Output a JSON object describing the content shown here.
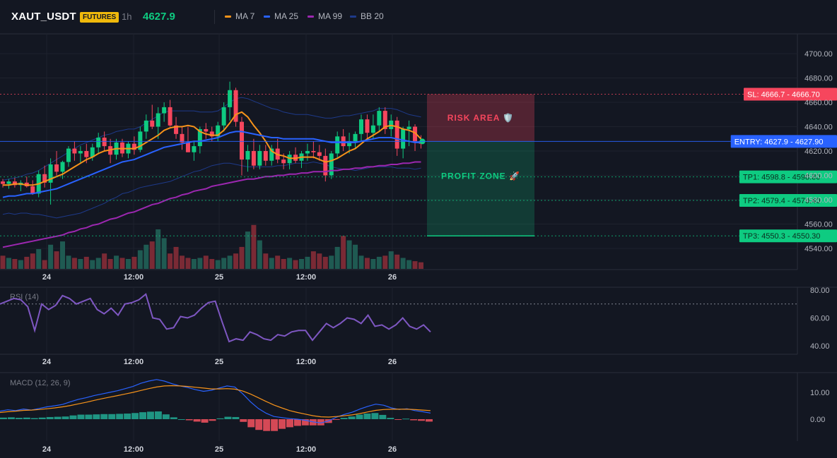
{
  "header": {
    "symbol": "XAUT_USDT",
    "badge": "FUTURES",
    "timeframe": "1h",
    "price": "4627.9",
    "legend": [
      {
        "label": "MA 7",
        "color": "#f7931a"
      },
      {
        "label": "MA 25",
        "color": "#2962ff"
      },
      {
        "label": "MA 99",
        "color": "#9c27b0"
      },
      {
        "label": "BB 20",
        "color": "#1e3a8a"
      }
    ]
  },
  "colors": {
    "up": "#0ecb81",
    "down": "#f6465d",
    "bg": "#131722",
    "grid": "#1e222d"
  },
  "chart_data": [
    {
      "type": "candlestick",
      "title": "XAUT_USDT",
      "ylim": [
        4530,
        4710
      ],
      "y_ticks": [
        "4700.00",
        "4680.00",
        "4660.00",
        "4640.00",
        "4620.00",
        "4600.00",
        "4580.00",
        "4560.00",
        "4540.00"
      ],
      "x_ticks": [
        "24",
        "12:00",
        "25",
        "12:00",
        "26"
      ],
      "ohlc": [
        [
          4595,
          4597,
          4590,
          4593
        ],
        [
          4593,
          4597,
          4589,
          4595
        ],
        [
          4595,
          4598,
          4590,
          4592
        ],
        [
          4592,
          4596,
          4587,
          4594
        ],
        [
          4594,
          4599,
          4590,
          4591
        ],
        [
          4591,
          4596,
          4584,
          4585
        ],
        [
          4585,
          4604,
          4582,
          4601
        ],
        [
          4601,
          4608,
          4590,
          4594
        ],
        [
          4594,
          4614,
          4576,
          4609
        ],
        [
          4609,
          4620,
          4600,
          4603
        ],
        [
          4603,
          4612,
          4597,
          4611
        ],
        [
          4611,
          4624,
          4607,
          4622
        ],
        [
          4622,
          4628,
          4612,
          4618
        ],
        [
          4618,
          4624,
          4610,
          4620
        ],
        [
          4620,
          4626,
          4610,
          4615
        ],
        [
          4615,
          4626,
          4612,
          4623
        ],
        [
          4623,
          4635,
          4618,
          4631
        ],
        [
          4631,
          4636,
          4620,
          4624
        ],
        [
          4624,
          4630,
          4610,
          4617
        ],
        [
          4617,
          4630,
          4613,
          4627
        ],
        [
          4627,
          4630,
          4615,
          4618
        ],
        [
          4618,
          4628,
          4614,
          4626
        ],
        [
          4626,
          4632,
          4617,
          4621
        ],
        [
          4621,
          4640,
          4619,
          4636
        ],
        [
          4636,
          4650,
          4630,
          4645
        ],
        [
          4645,
          4658,
          4638,
          4640
        ],
        [
          4640,
          4656,
          4630,
          4651
        ],
        [
          4651,
          4660,
          4644,
          4656
        ],
        [
          4656,
          4662,
          4640,
          4641
        ],
        [
          4641,
          4648,
          4630,
          4634
        ],
        [
          4634,
          4640,
          4621,
          4627
        ],
        [
          4627,
          4640,
          4619,
          4619
        ],
        [
          4619,
          4628,
          4612,
          4624
        ],
        [
          4624,
          4640,
          4618,
          4638
        ],
        [
          4638,
          4643,
          4630,
          4636
        ],
        [
          4636,
          4640,
          4628,
          4632
        ],
        [
          4632,
          4644,
          4628,
          4641
        ],
        [
          4641,
          4660,
          4636,
          4656
        ],
        [
          4656,
          4677,
          4645,
          4670
        ],
        [
          4670,
          4672,
          4640,
          4644
        ],
        [
          4644,
          4648,
          4600,
          4613
        ],
        [
          4613,
          4625,
          4603,
          4620
        ],
        [
          4620,
          4630,
          4605,
          4608
        ],
        [
          4608,
          4625,
          4605,
          4620
        ],
        [
          4620,
          4625,
          4608,
          4612
        ],
        [
          4612,
          4625,
          4608,
          4622
        ],
        [
          4622,
          4630,
          4610,
          4613
        ],
        [
          4613,
          4618,
          4605,
          4610
        ],
        [
          4610,
          4620,
          4605,
          4617
        ],
        [
          4617,
          4623,
          4610,
          4612
        ],
        [
          4612,
          4620,
          4606,
          4618
        ],
        [
          4618,
          4626,
          4612,
          4620
        ],
        [
          4620,
          4628,
          4614,
          4619
        ],
        [
          4619,
          4625,
          4612,
          4616
        ],
        [
          4616,
          4622,
          4595,
          4600
        ],
        [
          4600,
          4620,
          4597,
          4618
        ],
        [
          4618,
          4636,
          4614,
          4632
        ],
        [
          4632,
          4638,
          4620,
          4624
        ],
        [
          4624,
          4635,
          4618,
          4628
        ],
        [
          4628,
          4636,
          4622,
          4634
        ],
        [
          4634,
          4650,
          4628,
          4646
        ],
        [
          4646,
          4650,
          4630,
          4635
        ],
        [
          4635,
          4650,
          4630,
          4641
        ],
        [
          4641,
          4656,
          4636,
          4653
        ],
        [
          4653,
          4656,
          4634,
          4638
        ],
        [
          4638,
          4650,
          4632,
          4645
        ],
        [
          4645,
          4648,
          4616,
          4622
        ],
        [
          4622,
          4640,
          4614,
          4638
        ],
        [
          4638,
          4645,
          4624,
          4640
        ],
        [
          4640,
          4642,
          4620,
          4628
        ],
        [
          4628,
          4633,
          4622,
          4626
        ]
      ],
      "series": [
        {
          "name": "MA 7",
          "color": "#f7931a",
          "values": [
            4592,
            4592,
            4593,
            4593,
            4592,
            4592,
            4593,
            4595,
            4597,
            4599,
            4601,
            4604,
            4607,
            4610,
            4613,
            4615,
            4618,
            4620,
            4621,
            4622,
            4622,
            4622,
            4622,
            4624,
            4627,
            4630,
            4633,
            4637,
            4639,
            4640,
            4640,
            4641,
            4640,
            4636,
            4634,
            4633,
            4633,
            4637,
            4643,
            4650,
            4652,
            4648,
            4641,
            4635,
            4628,
            4620,
            4617,
            4616,
            4614,
            4614,
            4615,
            4615,
            4615,
            4613,
            4611,
            4612,
            4614,
            4617,
            4620,
            4622,
            4626,
            4630,
            4633,
            4636,
            4640,
            4641,
            4640,
            4638,
            4637,
            4635,
            4630
          ]
        },
        {
          "name": "MA 25",
          "color": "#2962ff",
          "values": [
            4582,
            4583,
            4583,
            4584,
            4585,
            4585,
            4586,
            4587,
            4588,
            4589,
            4591,
            4593,
            4595,
            4597,
            4599,
            4601,
            4603,
            4605,
            4607,
            4609,
            4611,
            4612,
            4613,
            4615,
            4617,
            4619,
            4621,
            4623,
            4624,
            4625,
            4626,
            4627,
            4628,
            4628,
            4629,
            4630,
            4631,
            4633,
            4635,
            4636,
            4636,
            4635,
            4634,
            4633,
            4632,
            4631,
            4631,
            4630,
            4630,
            4630,
            4630,
            4630,
            4630,
            4629,
            4628,
            4627,
            4627,
            4627,
            4627,
            4627,
            4628,
            4629,
            4630,
            4631,
            4631,
            4631,
            4630,
            4629,
            4628,
            4627,
            4627
          ]
        },
        {
          "name": "MA 99",
          "color": "#9c27b0",
          "values": [
            4541,
            4542,
            4543,
            4544,
            4545,
            4546,
            4547,
            4548,
            4549,
            4550,
            4551,
            4553,
            4554,
            4556,
            4557,
            4559,
            4560,
            4562,
            4564,
            4565,
            4567,
            4569,
            4570,
            4572,
            4574,
            4576,
            4577,
            4579,
            4581,
            4582,
            4584,
            4585,
            4587,
            4588,
            4589,
            4591,
            4592,
            4593,
            4594,
            4595,
            4596,
            4597,
            4597,
            4598,
            4599,
            4599,
            4600,
            4600,
            4601,
            4601,
            4602,
            4602,
            4603,
            4603,
            4603,
            4604,
            4604,
            4605,
            4605,
            4606,
            4606,
            4607,
            4607,
            4608,
            4608,
            4609,
            4609,
            4610,
            4610,
            4611,
            4611
          ]
        }
      ],
      "volume": [
        12,
        10,
        9,
        8,
        11,
        14,
        18,
        8,
        22,
        16,
        25,
        12,
        10,
        9,
        11,
        8,
        10,
        14,
        9,
        12,
        10,
        9,
        11,
        17,
        22,
        25,
        36,
        28,
        14,
        20,
        12,
        10,
        9,
        10,
        12,
        9,
        8,
        10,
        12,
        14,
        20,
        34,
        40,
        26,
        14,
        10,
        12,
        9,
        10,
        8,
        9,
        11,
        16,
        14,
        11,
        12,
        20,
        30,
        26,
        22,
        12,
        10,
        9,
        11,
        12,
        16,
        13,
        10,
        8,
        7,
        6
      ],
      "trade_levels": [
        {
          "label": "SL: 4666.7",
          "axis_label": "4666.70",
          "value": 4666.7,
          "color": "#f6465d"
        },
        {
          "label": "ENTRY: 4627.9",
          "axis_label": "4627.90",
          "value": 4627.9,
          "color": "#2962ff"
        },
        {
          "label": "TP1: 4598.8",
          "axis_label": "4598.80",
          "value": 4598.8,
          "color": "#0ecb81"
        },
        {
          "label": "TP2: 4579.4",
          "axis_label": "4579.40",
          "value": 4579.4,
          "color": "#0ecb81"
        },
        {
          "label": "TP3: 4550.3",
          "axis_label": "4550.30",
          "value": 4550.3,
          "color": "#0ecb81"
        }
      ],
      "annotations": {
        "risk": "RISK AREA 🛡️",
        "profit": "PROFIT ZONE 🚀"
      }
    },
    {
      "type": "line",
      "title": "RSI (14)",
      "ylim": [
        35,
        82
      ],
      "y_ticks": [
        "80.00",
        "60.00",
        "40.00"
      ],
      "x_ticks": [
        "24",
        "12:00",
        "25",
        "12:00",
        "26"
      ],
      "overbought": 70,
      "series": [
        {
          "name": "RSI (14)",
          "color": "#7e57c2",
          "values": [
            70,
            72,
            74,
            73,
            68,
            51,
            70,
            66,
            69,
            76,
            74,
            70,
            72,
            74,
            66,
            63,
            67,
            62,
            70,
            71,
            73,
            77,
            60,
            59,
            52,
            53,
            61,
            60,
            62,
            67,
            71,
            72,
            57,
            43,
            45,
            44,
            50,
            48,
            45,
            44,
            48,
            47,
            50,
            51,
            51,
            44,
            50,
            56,
            53,
            56,
            60,
            59,
            56,
            62,
            54,
            55,
            52,
            55,
            60,
            54,
            52,
            55,
            50
          ]
        }
      ]
    },
    {
      "type": "line",
      "title": "MACD (12, 26, 9)",
      "ylim": [
        -6,
        16
      ],
      "y_ticks": [
        "10.00",
        "0.00"
      ],
      "x_ticks": [
        "24",
        "12:00",
        "25",
        "12:00",
        "26"
      ],
      "series": [
        {
          "name": "MACD",
          "color": "#2962ff",
          "values": [
            3,
            3.5,
            3.2,
            3.8,
            3.4,
            4,
            4.6,
            5,
            5.5,
            6.5,
            7.4,
            8,
            8.8,
            9.4,
            10,
            10.6,
            11.4,
            12.2,
            13.4,
            14.2,
            14.8,
            14.2,
            13.2,
            12.4,
            11.8,
            11,
            10.4,
            10.8,
            11.6,
            12.4,
            12,
            9.5,
            6.5,
            4,
            2.2,
            1,
            0.6,
            0.2,
            0,
            -0.4,
            -1,
            -1.4,
            -0.6,
            0.8,
            1.8,
            2.6,
            3.8,
            4.8,
            5.6,
            5.2,
            4.2,
            3.6,
            3.9,
            3.2,
            2.8,
            2.3
          ]
        },
        {
          "name": "Signal",
          "color": "#f7931a",
          "values": [
            2.5,
            2.8,
            3,
            3.3,
            3.4,
            3.6,
            3.9,
            4.2,
            4.6,
            5.1,
            5.7,
            6.3,
            7,
            7.6,
            8.2,
            8.8,
            9.4,
            10,
            10.7,
            11.4,
            12,
            12.4,
            12.5,
            12.4,
            12.2,
            11.9,
            11.6,
            11.3,
            11.3,
            11.4,
            11.2,
            10.5,
            9.4,
            8,
            6.6,
            5.3,
            4.2,
            3.2,
            2.5,
            1.9,
            1.3,
            0.9,
            0.8,
            1,
            1.3,
            1.6,
            2.1,
            2.7,
            3.3,
            3.6,
            3.7,
            3.7,
            3.7,
            3.6,
            3.4,
            3.2
          ]
        }
      ],
      "histogram": [
        0.6,
        0.7,
        0.5,
        0.6,
        0.4,
        0.6,
        0.8,
        0.9,
        1,
        1.4,
        1.7,
        1.7,
        1.8,
        1.9,
        1.9,
        2,
        2.1,
        2.3,
        2.6,
        2.8,
        2.9,
        1.8,
        0.7,
        0,
        -0.4,
        -0.9,
        -1.3,
        -0.6,
        0.3,
        0.9,
        0.8,
        -1,
        -3,
        -4,
        -4.4,
        -4.4,
        -3.6,
        -3,
        -2.5,
        -2.3,
        -2.3,
        -2.3,
        -1.4,
        -0.2,
        0.5,
        1,
        1.7,
        2.1,
        2.3,
        1.6,
        0.5,
        -0.1,
        0.2,
        -0.4,
        -0.6,
        -0.9
      ]
    }
  ]
}
